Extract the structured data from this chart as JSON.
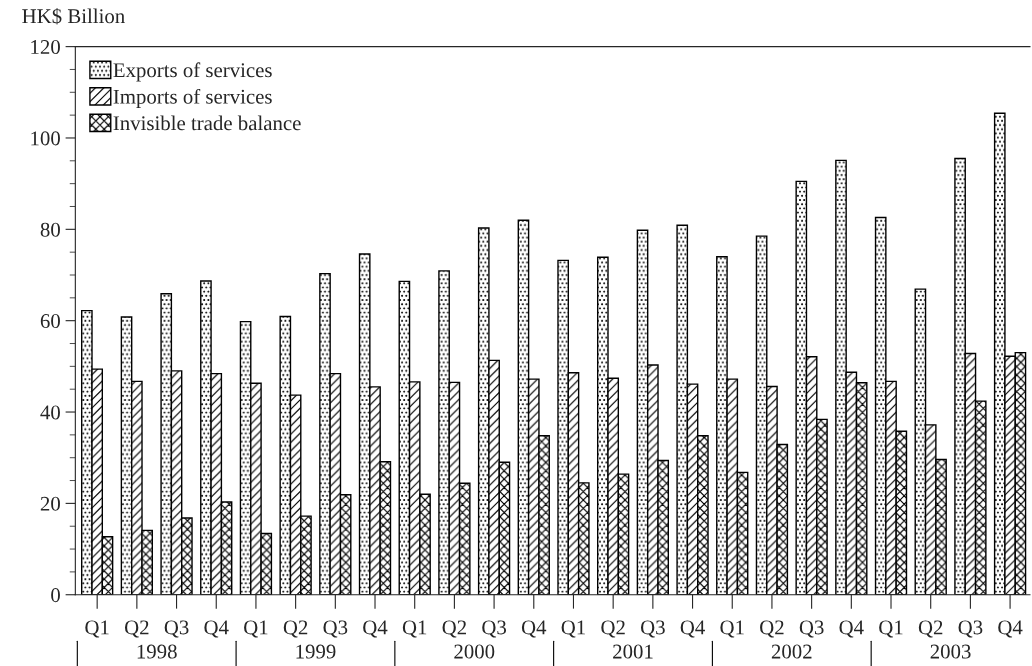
{
  "chart_data": {
    "type": "bar",
    "ylabel": "HK$ Billion",
    "categories": [
      "Q1",
      "Q2",
      "Q3",
      "Q4",
      "Q1",
      "Q2",
      "Q3",
      "Q4",
      "Q1",
      "Q2",
      "Q3",
      "Q4",
      "Q1",
      "Q2",
      "Q3",
      "Q4",
      "Q1",
      "Q2",
      "Q3",
      "Q4",
      "Q1",
      "Q2",
      "Q3",
      "Q4"
    ],
    "series": [
      {
        "name": "Exports of services",
        "color": "#000000",
        "values": [
          62.2,
          60.8,
          65.9,
          68.7,
          59.8,
          60.9,
          70.3,
          74.6,
          68.6,
          70.9,
          80.3,
          82.0,
          73.2,
          73.9,
          79.8,
          80.9,
          74.0,
          78.5,
          90.5,
          95.1,
          82.6,
          66.9,
          95.5,
          105.4
        ]
      },
      {
        "name": "Imports of services",
        "color": "#000000",
        "values": [
          49.4,
          46.7,
          49.0,
          48.4,
          46.3,
          43.7,
          48.4,
          45.5,
          46.6,
          46.5,
          51.3,
          47.2,
          48.6,
          47.4,
          50.3,
          46.1,
          47.2,
          45.6,
          52.1,
          48.7,
          46.7,
          37.2,
          52.8,
          52.2
        ]
      },
      {
        "name": "Invisible trade balance",
        "color": "#000000",
        "values": [
          12.7,
          14.1,
          16.8,
          20.3,
          13.4,
          17.2,
          21.9,
          29.1,
          22.0,
          24.4,
          29.0,
          34.8,
          24.5,
          26.4,
          29.4,
          34.8,
          26.8,
          32.9,
          38.4,
          46.4,
          35.8,
          29.6,
          42.4,
          53.0
        ]
      }
    ],
    "annotations": [
      "1998",
      "1999",
      "2000",
      "2001",
      "2002",
      "2003"
    ],
    "ylim": [
      0,
      120
    ],
    "yticks": [
      0,
      20,
      40,
      60,
      80,
      100,
      120
    ],
    "grid": false,
    "legend": "top left"
  }
}
